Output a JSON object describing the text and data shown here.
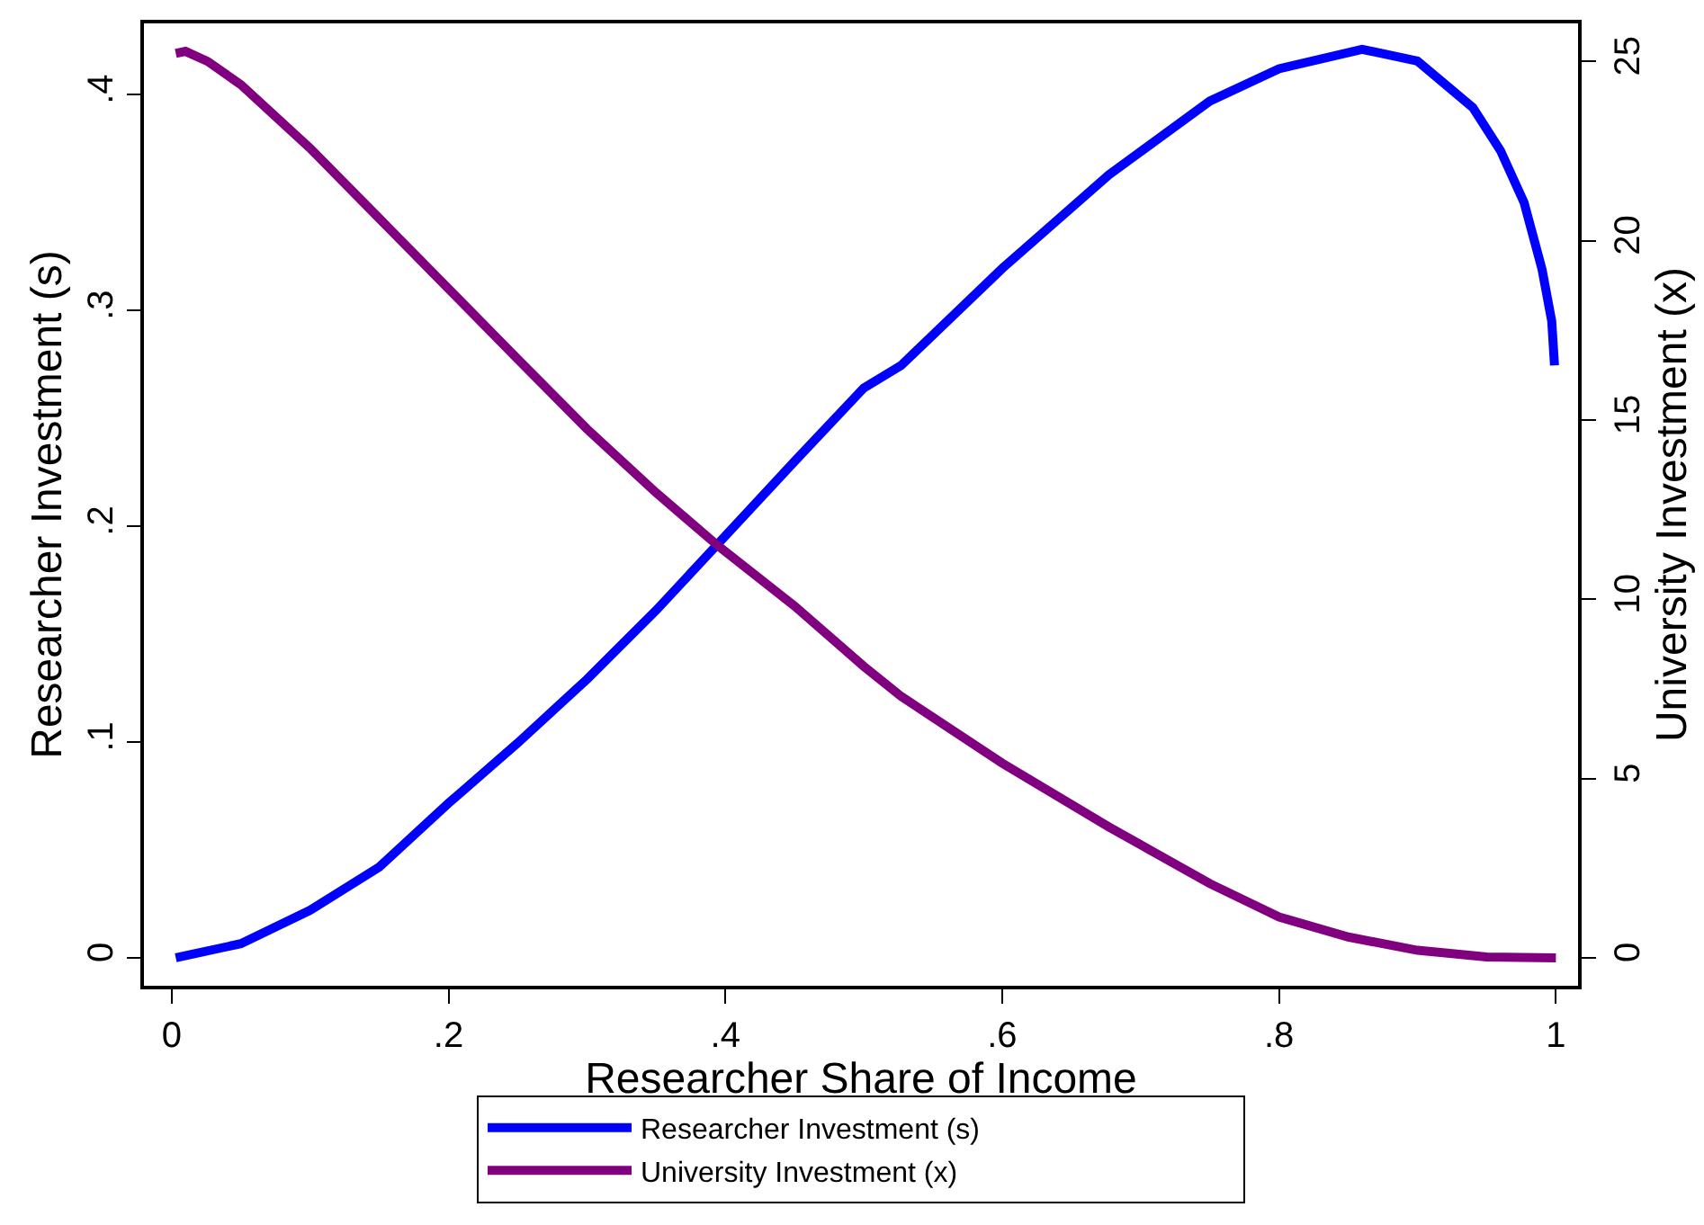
{
  "chart_data": {
    "type": "line",
    "xlabel": "Researcher Share of Income",
    "ylabel": "Researcher Investment (s)",
    "y2label": "University Investment (x)",
    "xlim": [
      -0.02,
      1.016
    ],
    "xticks": [
      0,
      {
        "value": 0.2,
        "label": ".2"
      },
      {
        "value": 0.4,
        "label": ".4"
      },
      {
        "value": 0.6,
        "label": ".6"
      },
      {
        "value": 0.8,
        "label": ".8"
      },
      1
    ],
    "ylim": [
      -0.013,
      0.433
    ],
    "yticks": [
      0,
      {
        "value": 0.1,
        "label": ".1"
      },
      {
        "value": 0.2,
        "label": ".2"
      },
      {
        "value": 0.3,
        "label": ".3"
      },
      {
        "value": 0.4,
        "label": ".4"
      }
    ],
    "y2lim": [
      -0.78,
      26.06
    ],
    "y2ticks": [
      0,
      5,
      10,
      15,
      20,
      25
    ],
    "grid": false,
    "legend": "bottom",
    "marker": "none",
    "line_style": "solid",
    "series": [
      {
        "name": "Researcher Investment (s)",
        "color": "#0000ff",
        "x": [
          0.003,
          0.05,
          0.1,
          0.15,
          0.2,
          0.25,
          0.3,
          0.35,
          0.395,
          0.45,
          0.5,
          0.527,
          0.6,
          0.677,
          0.75,
          0.8,
          0.86,
          0.9,
          0.94,
          0.96,
          0.977,
          0.99,
          0.997,
          0.999
        ],
        "values": [
          0,
          0.0065,
          0.022,
          0.042,
          0.0716,
          0.0995,
          0.129,
          0.161,
          0.192,
          0.23,
          0.264,
          0.2745,
          0.3194,
          0.3628,
          0.397,
          0.412,
          0.421,
          0.4155,
          0.394,
          0.374,
          0.35,
          0.319,
          0.295,
          0.2745
        ]
      },
      {
        "name": "University Investment (x)",
        "color": "#800080",
        "axis": "y2",
        "x": [
          0.003,
          0.01,
          0.026,
          0.05,
          0.1,
          0.15,
          0.2,
          0.25,
          0.3,
          0.35,
          0.395,
          0.45,
          0.5,
          0.527,
          0.6,
          0.677,
          0.75,
          0.8,
          0.85,
          0.9,
          0.95,
          1.0
        ],
        "values": [
          25.22,
          25.28,
          25.0,
          24.35,
          22.58,
          20.62,
          18.66,
          16.7,
          14.75,
          12.97,
          11.48,
          9.81,
          8.13,
          7.29,
          5.43,
          3.65,
          2.07,
          1.14,
          0.58,
          0.21,
          0.02,
          0
        ]
      }
    ]
  }
}
